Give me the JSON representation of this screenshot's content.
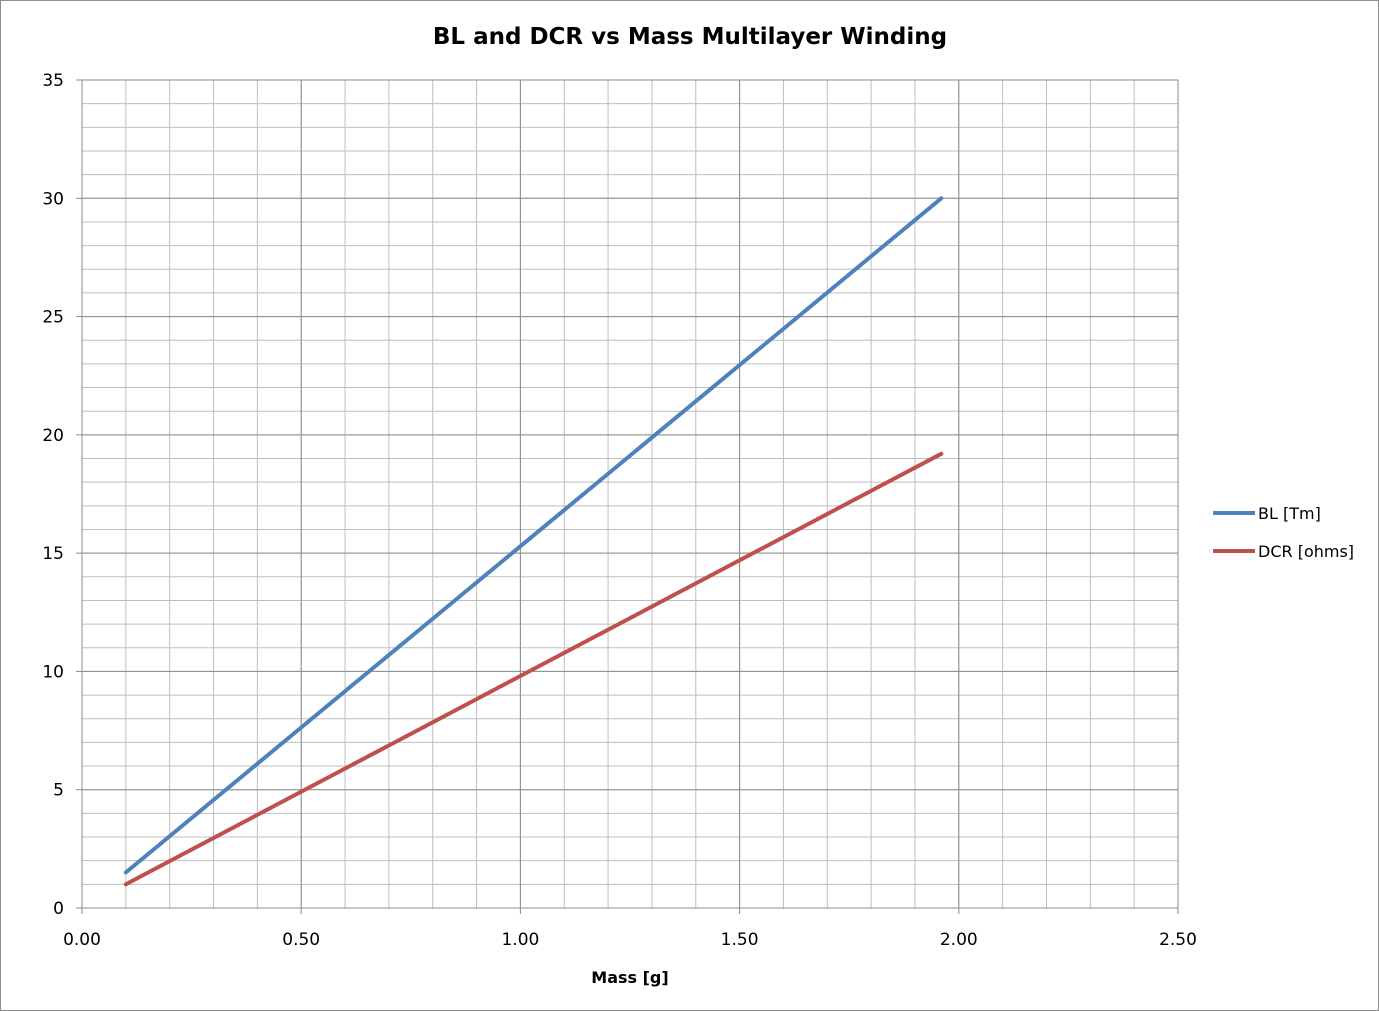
{
  "chart_data": {
    "type": "line",
    "title": "BL and DCR vs Mass Multilayer  Winding",
    "xlabel": "Mass [g]",
    "ylabel": "",
    "xlim": [
      0,
      2.5
    ],
    "ylim": [
      0,
      35
    ],
    "x_ticks": [
      "0.00",
      "0.50",
      "1.00",
      "1.50",
      "2.00",
      "2.50"
    ],
    "y_ticks": [
      "0",
      "5",
      "10",
      "15",
      "20",
      "25",
      "30",
      "35"
    ],
    "x_tick_values": [
      0,
      0.5,
      1.0,
      1.5,
      2.0,
      2.5
    ],
    "y_tick_values": [
      0,
      5,
      10,
      15,
      20,
      25,
      30,
      35
    ],
    "x_minor_step": 0.1,
    "y_minor_step": 1,
    "grid": true,
    "legend_position": "right",
    "series": [
      {
        "name": "BL [Tm]",
        "color": "#4f81bd",
        "x": [
          0.1,
          1.96
        ],
        "y": [
          1.5,
          30.0
        ]
      },
      {
        "name": "DCR [ohms]",
        "color": "#c0504d",
        "x": [
          0.1,
          1.96
        ],
        "y": [
          1.0,
          19.2
        ]
      }
    ]
  }
}
